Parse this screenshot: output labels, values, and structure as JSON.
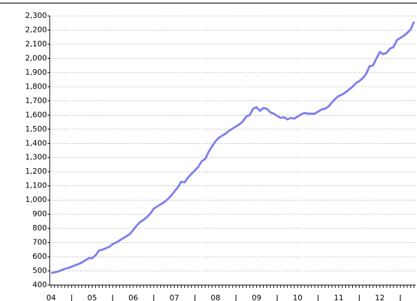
{
  "chart_data": {
    "type": "line",
    "categories": [
      "04",
      null,
      null,
      null,
      null,
      null,
      "J",
      null,
      null,
      null,
      null,
      null,
      "05",
      null,
      null,
      null,
      null,
      null,
      "J",
      null,
      null,
      null,
      null,
      null,
      "06",
      null,
      null,
      null,
      null,
      null,
      "J",
      null,
      null,
      null,
      null,
      null,
      "07",
      null,
      null,
      null,
      null,
      null,
      "J",
      null,
      null,
      null,
      null,
      null,
      "08",
      null,
      null,
      null,
      null,
      null,
      "J",
      null,
      null,
      null,
      null,
      null,
      "09",
      null,
      null,
      null,
      null,
      null,
      "J",
      null,
      null,
      null,
      null,
      null,
      "10",
      null,
      null,
      null,
      null,
      null,
      "J",
      null,
      null,
      null,
      null,
      null,
      "11",
      null,
      null,
      null,
      null,
      null,
      "J",
      null,
      null,
      null,
      null,
      null,
      "12",
      null,
      null,
      null,
      null,
      null,
      "J",
      null,
      null,
      null,
      null
    ],
    "values": [
      485,
      490,
      495,
      505,
      515,
      520,
      530,
      540,
      548,
      560,
      575,
      590,
      590,
      610,
      645,
      650,
      660,
      670,
      690,
      700,
      715,
      730,
      745,
      760,
      790,
      820,
      845,
      860,
      880,
      905,
      940,
      955,
      970,
      985,
      1005,
      1030,
      1060,
      1090,
      1130,
      1125,
      1160,
      1185,
      1210,
      1235,
      1275,
      1290,
      1340,
      1380,
      1415,
      1440,
      1455,
      1470,
      1490,
      1505,
      1520,
      1535,
      1555,
      1590,
      1600,
      1645,
      1655,
      1630,
      1650,
      1645,
      1620,
      1610,
      1595,
      1580,
      1585,
      1570,
      1580,
      1575,
      1590,
      1605,
      1615,
      1610,
      1610,
      1610,
      1625,
      1640,
      1645,
      1660,
      1690,
      1715,
      1735,
      1745,
      1760,
      1780,
      1800,
      1825,
      1840,
      1860,
      1890,
      1945,
      1950,
      2000,
      2045,
      2030,
      2040,
      2070,
      2080,
      2130,
      2145,
      2160,
      2180,
      2205,
      2260
    ],
    "color": "#7f7fef",
    "ylim": [
      400,
      2300
    ],
    "yticks": [
      400,
      500,
      600,
      700,
      800,
      900,
      {
        "value": 1000,
        "label": "1,000"
      },
      {
        "value": 1100,
        "label": "1,100"
      },
      {
        "value": 1200,
        "label": "1,200"
      },
      {
        "value": 1300,
        "label": "1,300"
      },
      {
        "value": 1400,
        "label": "1,400"
      },
      {
        "value": 1500,
        "label": "1,500"
      },
      {
        "value": 1600,
        "label": "1,600"
      },
      {
        "value": 1700,
        "label": "1,700"
      },
      {
        "value": 1800,
        "label": "1,800"
      },
      {
        "value": 1900,
        "label": "1,900"
      },
      {
        "value": 2000,
        "label": "2,000"
      },
      {
        "value": 2100,
        "label": "2,100"
      },
      {
        "value": 2200,
        "label": "2,200"
      },
      {
        "value": 2300,
        "label": "2,300"
      }
    ],
    "grid": true
  }
}
